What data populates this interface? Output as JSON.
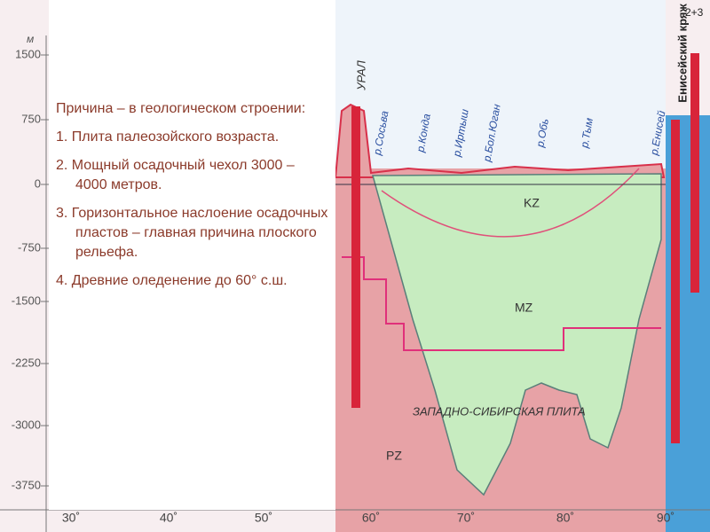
{
  "axis": {
    "unit": "м",
    "y_labels": [
      "1500",
      "750",
      "0",
      "-750",
      "-1500",
      "-2250",
      "-3000",
      "-3750"
    ],
    "x_labels": [
      "30˚",
      "40˚",
      "50˚",
      "60˚",
      "70˚",
      "80˚",
      "90˚"
    ]
  },
  "text_box": {
    "items": [
      "Причина – в геологическом строении:",
      "1.  Плита палеозойского возраста.",
      "2. Мощный осадочный чехол 3000 – 4000 метров.",
      "3. Горизонтальное наслоение осадочных пластов – главная причина плоского рельефа.",
      "4. Древние оледенение до 60° с.ш."
    ]
  },
  "profile": {
    "ural": "УРАЛ",
    "rivers": [
      "р.Сосьва",
      "р.Конда",
      "р.Иртыш",
      "р.Бол.Юган",
      "р.Обь",
      "р.Тым",
      "р.Енисей"
    ],
    "layers": [
      "KZ",
      "MZ",
      "PZ"
    ],
    "plate": "ЗАПАДНО-СИБИРСКАЯ ПЛИТА",
    "ridge": "Енисейский кряж",
    "corner": "2+3"
  }
}
